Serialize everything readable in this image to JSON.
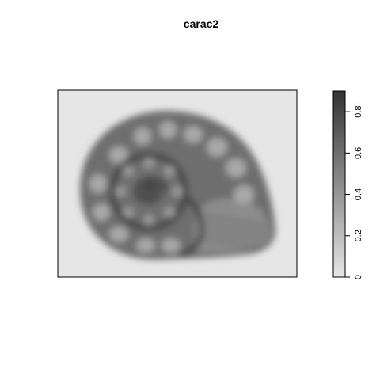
{
  "chart_data": {
    "type": "heatmap",
    "title": "carac2",
    "xlabel": "",
    "ylabel": "",
    "image_subject": "snail shell",
    "axes_shown": false,
    "palette": {
      "low": "#e6e6e6",
      "high": "#333333"
    },
    "background_value": 0.15,
    "colorbar": {
      "position": "right",
      "range": [
        0,
        0.9
      ],
      "ticks": [
        0,
        0.2,
        0.4,
        0.6,
        0.8
      ],
      "tick_labels": [
        "0",
        "0.2",
        "0.4",
        "0.6",
        "0.8"
      ]
    }
  }
}
